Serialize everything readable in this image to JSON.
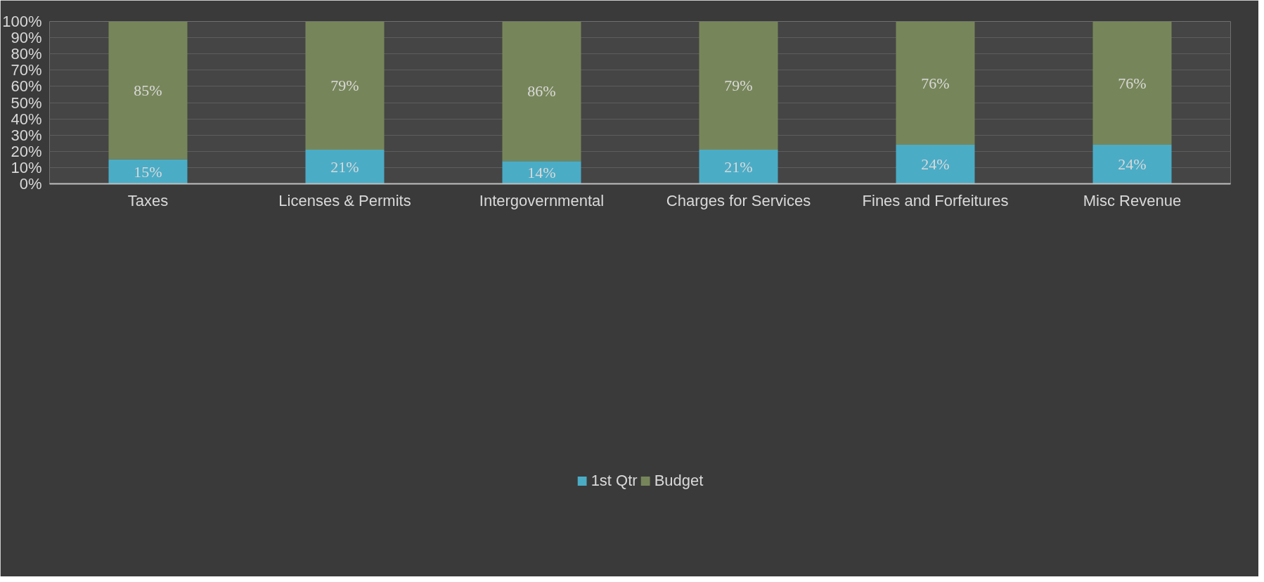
{
  "chart_data": {
    "type": "bar",
    "stacked": true,
    "categories": [
      "Taxes",
      "Licenses & Permits",
      "Intergovernmental",
      "Charges for Services",
      "Fines and Forfeitures",
      "Misc Revenue"
    ],
    "series": [
      {
        "name": "1st Qtr",
        "color": "#4bacc6",
        "values": [
          15,
          21,
          14,
          21,
          24,
          24
        ],
        "value_labels": [
          "15%",
          "21%",
          "14%",
          "21%",
          "24%",
          "24%"
        ]
      },
      {
        "name": "Budget",
        "color": "#77865a",
        "values": [
          85,
          79,
          86,
          79,
          76,
          76
        ],
        "value_labels": [
          "85%",
          "79%",
          "86%",
          "79%",
          "76%",
          "76%"
        ]
      }
    ],
    "ylim": [
      0,
      100
    ],
    "yticks": [
      {
        "value": 0,
        "label": "0%"
      },
      {
        "value": 10,
        "label": "10%"
      },
      {
        "value": 20,
        "label": "20%"
      },
      {
        "value": 30,
        "label": "30%"
      },
      {
        "value": 40,
        "label": "40%"
      },
      {
        "value": 50,
        "label": "50%"
      },
      {
        "value": 60,
        "label": "60%"
      },
      {
        "value": 70,
        "label": "70%"
      },
      {
        "value": 80,
        "label": "80%"
      },
      {
        "value": 90,
        "label": "90%"
      },
      {
        "value": 100,
        "label": "100%"
      }
    ],
    "grid": "y",
    "legend": "bottom"
  }
}
